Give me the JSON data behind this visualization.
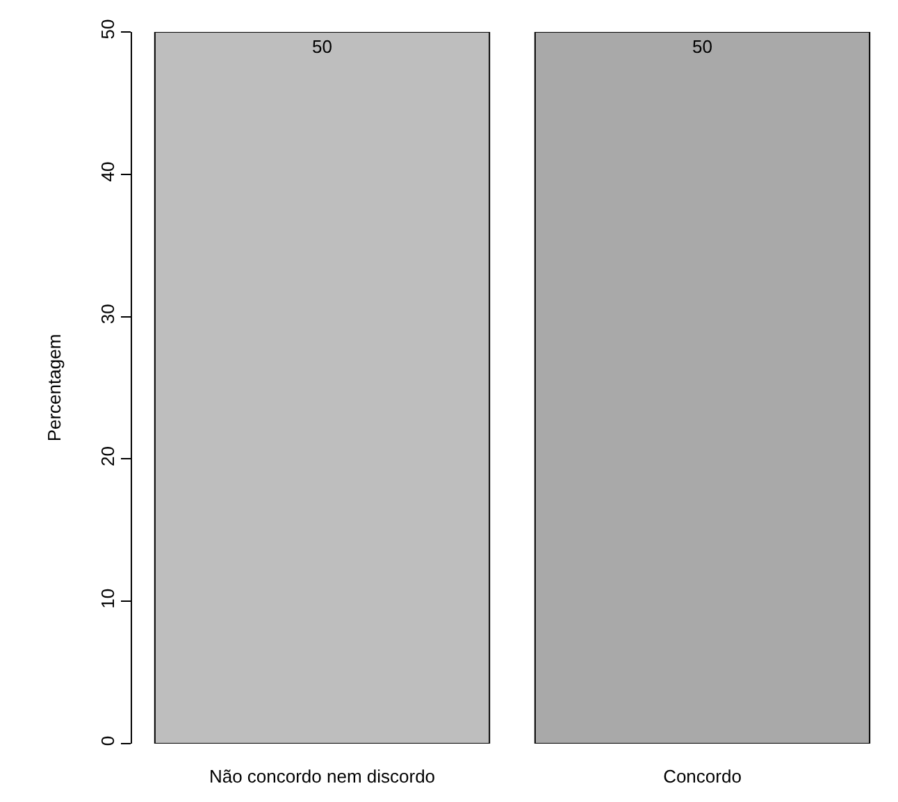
{
  "chart_data": {
    "type": "bar",
    "categories": [
      "Não concordo nem discordo",
      "Concordo"
    ],
    "values": [
      50,
      50
    ],
    "colors": [
      "#bebebe",
      "#a9a9a9"
    ],
    "ylabel": "Percentagem",
    "ylim": [
      0,
      50
    ],
    "yticks": [
      0,
      10,
      20,
      30,
      40,
      50
    ],
    "data_labels": true
  }
}
